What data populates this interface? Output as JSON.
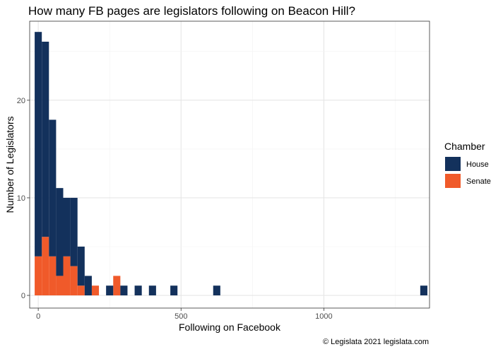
{
  "chart_data": {
    "type": "bar",
    "subtype": "stacked-histogram",
    "title": "How many FB pages are legislators following on Beacon Hill?",
    "xlabel": "Following on Facebook",
    "ylabel": "Number of Legislators",
    "caption": "© Legislata 2021 legislata.com",
    "bin_width": 25,
    "xlim": [
      -30,
      1370
    ],
    "ylim": [
      -1.3,
      28.1
    ],
    "x_ticks": [
      0,
      500,
      1000
    ],
    "y_ticks": [
      0,
      10,
      20
    ],
    "x_tick_labels": [
      "0",
      "500",
      "1000"
    ],
    "y_tick_labels": [
      "0",
      "10",
      "20"
    ],
    "grid": true,
    "legend": {
      "title": "Chamber",
      "position": "right"
    },
    "series": [
      {
        "name": "Senate",
        "color": "#f05a2a",
        "bins": [
          {
            "x": 0,
            "count": 4
          },
          {
            "x": 25,
            "count": 6
          },
          {
            "x": 50,
            "count": 4
          },
          {
            "x": 75,
            "count": 2
          },
          {
            "x": 100,
            "count": 4
          },
          {
            "x": 125,
            "count": 3
          },
          {
            "x": 150,
            "count": 1
          },
          {
            "x": 200,
            "count": 1
          },
          {
            "x": 275,
            "count": 2
          }
        ]
      },
      {
        "name": "House",
        "color": "#13315c",
        "bins": [
          {
            "x": 0,
            "count": 23
          },
          {
            "x": 25,
            "count": 20
          },
          {
            "x": 50,
            "count": 14
          },
          {
            "x": 75,
            "count": 9
          },
          {
            "x": 100,
            "count": 6
          },
          {
            "x": 125,
            "count": 7
          },
          {
            "x": 150,
            "count": 4
          },
          {
            "x": 175,
            "count": 2
          },
          {
            "x": 250,
            "count": 1
          },
          {
            "x": 300,
            "count": 1
          },
          {
            "x": 350,
            "count": 1
          },
          {
            "x": 400,
            "count": 1
          },
          {
            "x": 475,
            "count": 1
          },
          {
            "x": 625,
            "count": 1
          },
          {
            "x": 1350,
            "count": 1
          }
        ]
      }
    ]
  }
}
